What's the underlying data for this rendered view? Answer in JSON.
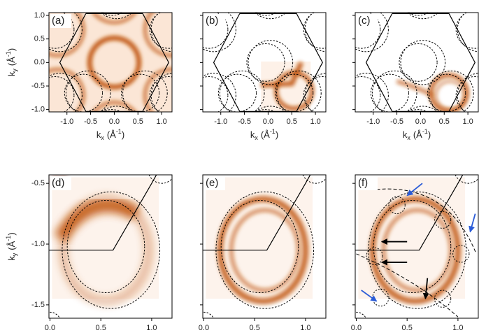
{
  "axis_labels": {
    "x": [
      "k",
      "x",
      "(Å",
      "-1",
      ")"
    ],
    "y": [
      "k",
      "y",
      "(Å",
      "-1",
      ")"
    ]
  },
  "rows": [
    {
      "xlim": [
        -1.38,
        1.22
      ],
      "ylim": [
        -1.05,
        1.06
      ],
      "xticks": [
        {
          "value": -1,
          "label": "-1.0"
        },
        -0.5,
        {
          "value": 0,
          "label": "0.0"
        },
        0.5,
        {
          "value": 1,
          "label": "1.0"
        }
      ],
      "yticks": [
        {
          "value": -1,
          "label": "-1.0"
        },
        -0.5,
        {
          "value": 0,
          "label": "0.0"
        },
        0.5,
        {
          "value": 1,
          "label": "1.0"
        }
      ],
      "panels": [
        {
          "label": "(a)"
        },
        {
          "label": "(b)"
        },
        {
          "label": "(c)"
        }
      ]
    },
    {
      "xlim": [
        -0.01,
        1.2
      ],
      "ylim": [
        -1.61,
        -0.43
      ],
      "xticks": [
        {
          "value": 0,
          "label": "0.0"
        },
        0.5,
        {
          "value": 1,
          "label": "1.0"
        }
      ],
      "yticks": [
        -0.5,
        {
          "value": -1,
          "label": "-1.0"
        },
        -1.5
      ],
      "panels": [
        {
          "label": "(d)"
        },
        {
          "label": "(e)"
        },
        {
          "label": "(f)"
        }
      ]
    }
  ]
}
